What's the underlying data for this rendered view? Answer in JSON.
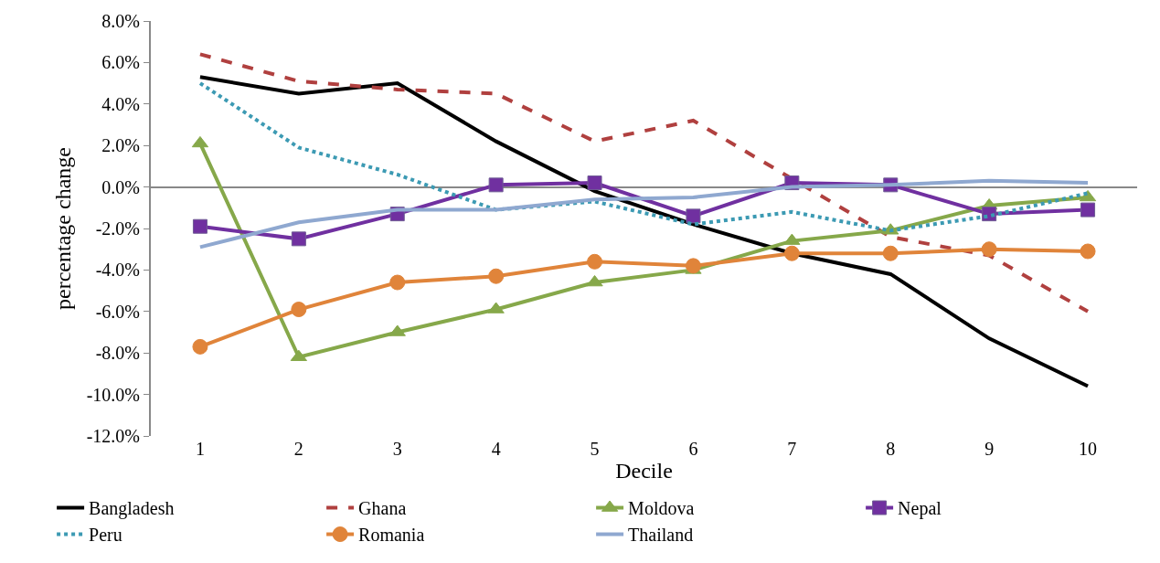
{
  "chart_data": {
    "type": "line",
    "xlabel": "Decile",
    "ylabel": "percentage change",
    "categories": [
      "1",
      "2",
      "3",
      "4",
      "5",
      "6",
      "7",
      "8",
      "9",
      "10"
    ],
    "ylim": [
      -12,
      8
    ],
    "yticks": [
      {
        "value": 8,
        "label": "8.0%"
      },
      {
        "value": 6,
        "label": "6.0%"
      },
      {
        "value": 4,
        "label": "4.0%"
      },
      {
        "value": 2,
        "label": "2.0%"
      },
      {
        "value": 0,
        "label": "0.0%"
      },
      {
        "value": -2,
        "label": "-2.0%"
      },
      {
        "value": -4,
        "label": "-4.0%"
      },
      {
        "value": -6,
        "label": "-6.0%"
      },
      {
        "value": -8,
        "label": "-8.0%"
      },
      {
        "value": -10,
        "label": "-10.0%"
      },
      {
        "value": -12,
        "label": "-12.0%"
      }
    ],
    "legend": "bottom",
    "series": [
      {
        "name": "Bangladesh",
        "color": "#000000",
        "line_style": "solid",
        "marker": "none",
        "values": [
          5.3,
          4.5,
          5.0,
          2.2,
          -0.2,
          -1.8,
          -3.2,
          -4.2,
          -7.3,
          -9.6
        ]
      },
      {
        "name": "Ghana",
        "color": "#b0403f",
        "line_style": "dashed",
        "marker": "none",
        "values": [
          6.4,
          5.1,
          4.7,
          4.5,
          2.2,
          3.2,
          0.4,
          -2.4,
          -3.3,
          -6.0
        ]
      },
      {
        "name": "Moldova",
        "color": "#86a84a",
        "line_style": "solid",
        "marker": "triangle",
        "values": [
          2.1,
          -8.2,
          -7.0,
          -5.9,
          -4.6,
          -4.0,
          -2.6,
          -2.1,
          -0.9,
          -0.5
        ]
      },
      {
        "name": "Nepal",
        "color": "#7030a0",
        "line_style": "solid",
        "marker": "square",
        "values": [
          -1.9,
          -2.5,
          -1.3,
          0.1,
          0.2,
          -1.4,
          0.2,
          0.1,
          -1.3,
          -1.1
        ]
      },
      {
        "name": "Peru",
        "color": "#3c9ab3",
        "line_style": "dotted",
        "marker": "none",
        "values": [
          5.0,
          1.9,
          0.6,
          -1.1,
          -0.7,
          -1.8,
          -1.2,
          -2.1,
          -1.4,
          -0.3
        ]
      },
      {
        "name": "Romania",
        "color": "#e0843a",
        "line_style": "solid",
        "marker": "circle",
        "values": [
          -7.7,
          -5.9,
          -4.6,
          -4.3,
          -3.6,
          -3.8,
          -3.2,
          -3.2,
          -3.0,
          -3.1
        ]
      },
      {
        "name": "Thailand",
        "color": "#8fa8d0",
        "line_style": "solid",
        "marker": "none",
        "values": [
          -2.9,
          -1.7,
          -1.1,
          -1.1,
          -0.6,
          -0.5,
          0.0,
          0.1,
          0.3,
          0.2
        ]
      }
    ]
  }
}
